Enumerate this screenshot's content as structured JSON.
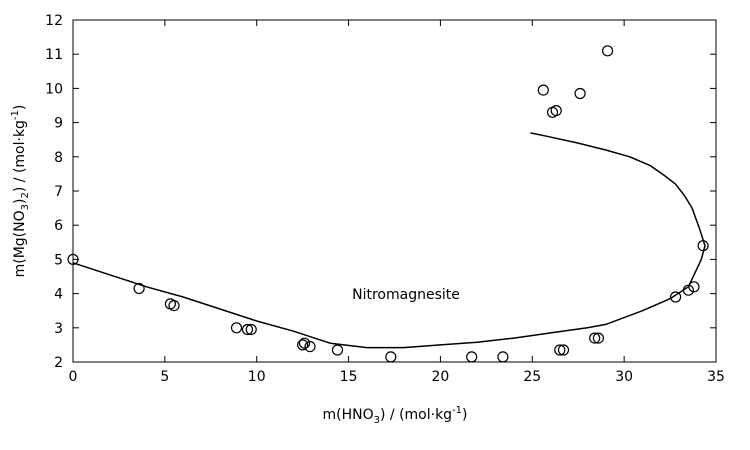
{
  "chart_data": {
    "type": "scatter",
    "xlabel": {
      "prefix": "m(HNO",
      "sub": "3",
      "mid": ") / (mol·kg",
      "sup": "-1",
      "suffix": ")"
    },
    "ylabel": {
      "prefix": "m(Mg(NO",
      "sub": "3",
      "mid": ")",
      "sub2": "2",
      "mid2": ") / (mol·kg",
      "sup": "-1",
      "suffix": ")"
    },
    "xlim": [
      0,
      35
    ],
    "ylim": [
      2,
      12
    ],
    "xticks": [
      0,
      5,
      10,
      15,
      20,
      25,
      30,
      35
    ],
    "yticks": [
      2,
      3,
      4,
      5,
      6,
      7,
      8,
      9,
      10,
      11,
      12
    ],
    "annotation": "Nitromagnesite",
    "grid": false,
    "series": [
      {
        "kind": "points",
        "marker": "open-circle",
        "x": [
          0.0,
          3.6,
          5.3,
          5.5,
          8.9,
          9.5,
          9.7,
          12.5,
          12.6,
          12.9,
          14.4,
          17.3,
          21.7,
          23.4,
          26.5,
          26.7,
          28.4,
          28.6,
          25.6,
          26.1,
          26.3,
          27.6,
          29.1,
          32.8,
          33.5,
          33.8,
          34.3
        ],
        "y": [
          5.0,
          4.15,
          3.7,
          3.65,
          3.0,
          2.95,
          2.95,
          2.5,
          2.55,
          2.45,
          2.35,
          2.15,
          2.15,
          2.15,
          2.35,
          2.35,
          2.7,
          2.7,
          9.95,
          9.3,
          9.35,
          9.85,
          11.1,
          3.9,
          4.1,
          4.2,
          5.4
        ]
      },
      {
        "kind": "line",
        "x": [
          0,
          2,
          4,
          6,
          8,
          10,
          12,
          14,
          16,
          18,
          20,
          22,
          24,
          26,
          28,
          29,
          31,
          32.5,
          33.5,
          34.2,
          34.4,
          34.1,
          33.7,
          33.3,
          32.8,
          32.2,
          31.4,
          30.3,
          29.0,
          27.5,
          25.8,
          24.9
        ],
        "y": [
          4.9,
          4.55,
          4.2,
          3.9,
          3.55,
          3.2,
          2.9,
          2.55,
          2.42,
          2.42,
          2.5,
          2.58,
          2.7,
          2.85,
          3.0,
          3.1,
          3.5,
          3.85,
          4.2,
          5.0,
          5.4,
          5.9,
          6.5,
          6.85,
          7.2,
          7.45,
          7.75,
          8.0,
          8.2,
          8.4,
          8.6,
          8.7
        ]
      }
    ]
  }
}
